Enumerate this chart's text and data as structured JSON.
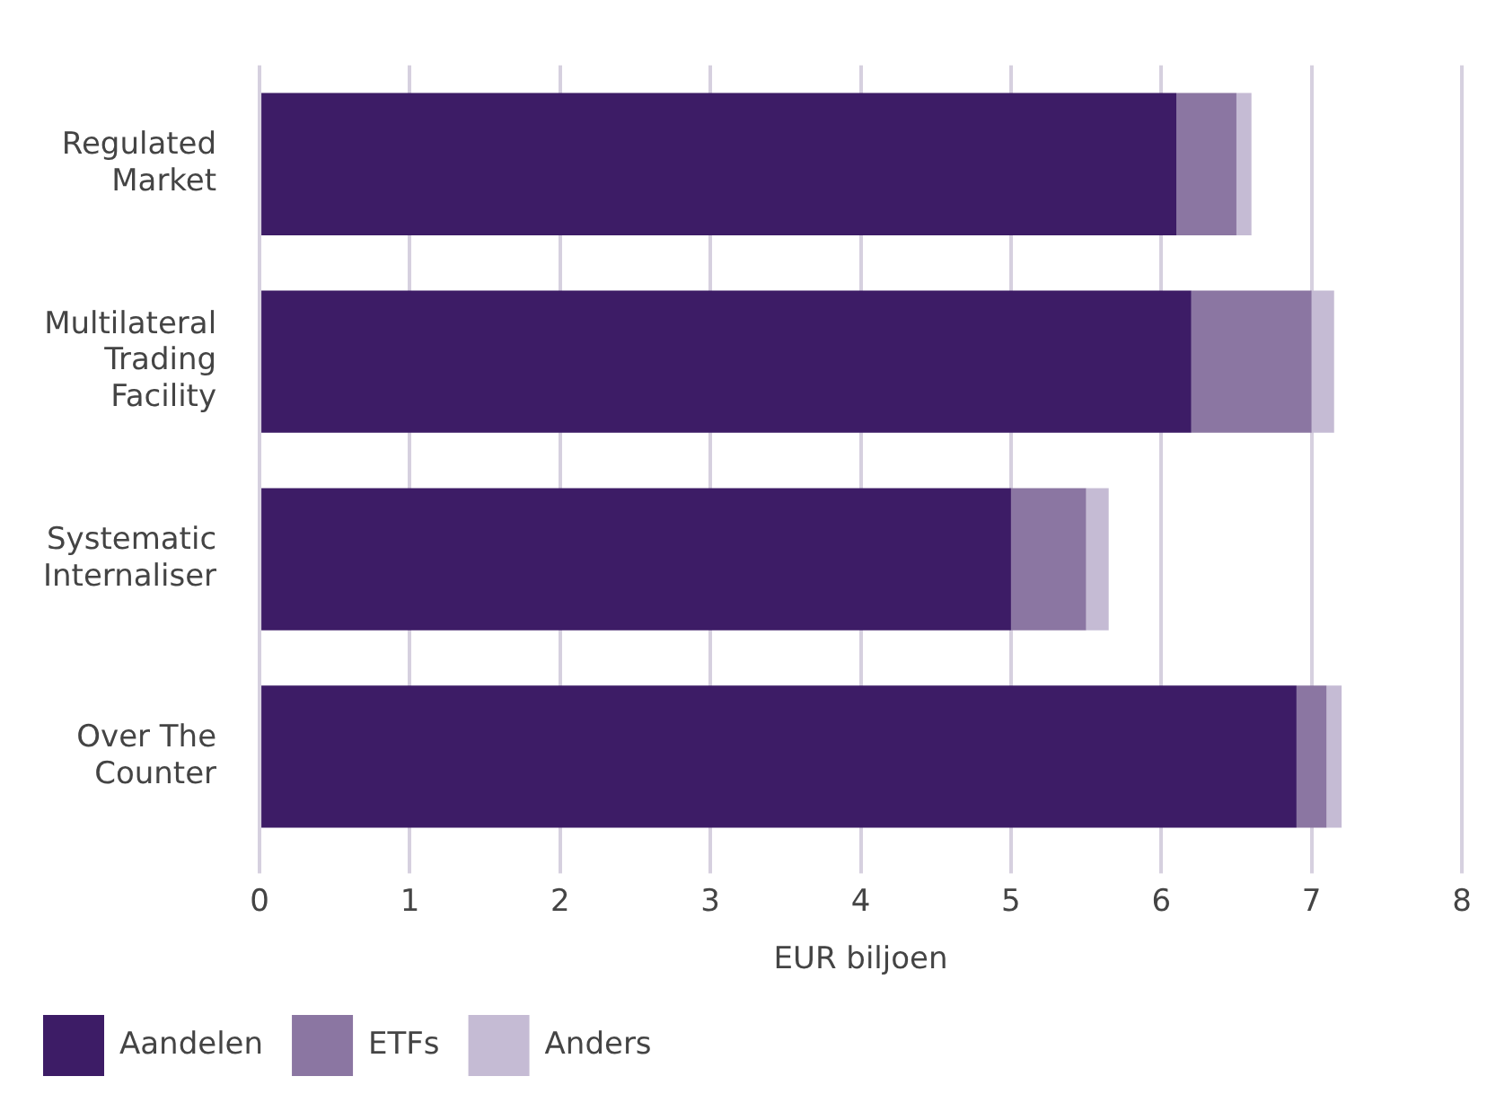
{
  "chart_data": {
    "type": "bar",
    "orientation": "horizontal",
    "stacked": true,
    "categories": [
      "Regulated Market",
      "Multilateral Trading Facility",
      "Systematic Internaliser",
      "Over The Counter"
    ],
    "series": [
      {
        "name": "Aandelen",
        "color": "#3d1c66",
        "values": [
          6.1,
          6.2,
          5.0,
          6.9
        ]
      },
      {
        "name": "ETFs",
        "color": "#8b76a2",
        "values": [
          0.4,
          0.8,
          0.5,
          0.2
        ]
      },
      {
        "name": "Anders",
        "color": "#c5bbd4",
        "values": [
          0.1,
          0.15,
          0.15,
          0.1
        ]
      }
    ],
    "xlabel": "EUR biljoen",
    "xlim": [
      0,
      8
    ],
    "xticks": [
      0,
      1,
      2,
      3,
      4,
      5,
      6,
      7,
      8
    ],
    "grid": "x",
    "legend": "bottom left"
  }
}
